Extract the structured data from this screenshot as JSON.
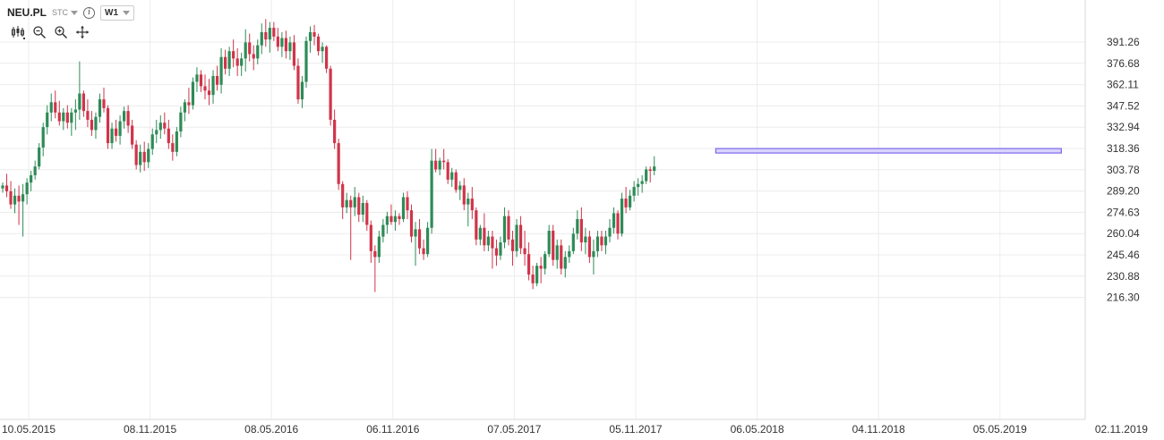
{
  "header": {
    "symbol": "NEU.PL",
    "chart_type": "STC",
    "interval": "W1",
    "icons": [
      "info-icon",
      "candles-icon",
      "zoom-out-icon",
      "zoom-in-icon",
      "move-icon"
    ]
  },
  "colors": {
    "up": "#2e8b57",
    "down": "#d0344a",
    "resistance_fill": "#d9d4fb",
    "resistance_stroke": "#7b68ee",
    "grid": "#ececec"
  },
  "chart_data": {
    "type": "candlestick",
    "y_ticks": [
      "391.26",
      "376.68",
      "362.11",
      "347.52",
      "332.94",
      "318.36",
      "303.78",
      "289.20",
      "274.63",
      "260.04",
      "245.46",
      "230.88",
      "216.30"
    ],
    "x_ticks": [
      "10.05.2015",
      "08.11.2015",
      "08.05.2016",
      "06.11.2016",
      "07.05.2017",
      "05.11.2017",
      "06.05.2018",
      "04.11.2018",
      "05.05.2019",
      "02.11.2019"
    ],
    "ylim": [
      216.3,
      391.26
    ],
    "grid": true,
    "resistance_zone": {
      "from_x": "05.03.2018",
      "to_x": "05.08.2019",
      "low": 317.0,
      "high": 318.3
    },
    "series": [
      {
        "ohlc": [
          [
            291,
            295,
            288,
            293
          ],
          [
            293,
            301,
            285,
            289
          ],
          [
            289,
            296,
            277,
            280
          ],
          [
            280,
            291,
            274,
            286
          ],
          [
            286,
            293,
            266,
            282
          ],
          [
            282,
            294,
            258,
            287
          ],
          [
            287,
            298,
            280,
            295
          ],
          [
            295,
            303,
            289,
            300
          ],
          [
            300,
            310,
            297,
            306
          ],
          [
            306,
            322,
            304,
            319
          ],
          [
            319,
            336,
            313,
            333
          ],
          [
            333,
            348,
            328,
            343
          ],
          [
            343,
            356,
            337,
            350
          ],
          [
            350,
            358,
            339,
            343
          ],
          [
            343,
            351,
            334,
            337
          ],
          [
            337,
            346,
            331,
            343
          ],
          [
            343,
            348,
            332,
            336
          ],
          [
            336,
            346,
            327,
            343
          ],
          [
            343,
            352,
            331,
            345
          ],
          [
            345,
            378,
            338,
            356
          ],
          [
            356,
            358,
            340,
            344
          ],
          [
            344,
            352,
            333,
            338
          ],
          [
            338,
            344,
            327,
            331
          ],
          [
            331,
            343,
            325,
            340
          ],
          [
            340,
            356,
            336,
            352
          ],
          [
            352,
            360,
            343,
            346
          ],
          [
            346,
            348,
            318,
            322
          ],
          [
            322,
            336,
            318,
            332
          ],
          [
            332,
            338,
            323,
            327
          ],
          [
            327,
            341,
            321,
            337
          ],
          [
            337,
            347,
            332,
            344
          ],
          [
            344,
            348,
            329,
            334
          ],
          [
            334,
            338,
            318,
            321
          ],
          [
            321,
            324,
            304,
            307
          ],
          [
            307,
            321,
            302,
            316
          ],
          [
            316,
            323,
            303,
            309
          ],
          [
            309,
            322,
            305,
            318
          ],
          [
            318,
            332,
            314,
            328
          ],
          [
            328,
            338,
            322,
            331
          ],
          [
            331,
            341,
            325,
            336
          ],
          [
            336,
            343,
            328,
            332
          ],
          [
            332,
            338,
            318,
            322
          ],
          [
            322,
            328,
            310,
            316
          ],
          [
            316,
            333,
            313,
            330
          ],
          [
            330,
            347,
            326,
            343
          ],
          [
            343,
            352,
            337,
            350
          ],
          [
            350,
            360,
            342,
            348
          ],
          [
            348,
            367,
            345,
            364
          ],
          [
            364,
            374,
            357,
            369
          ],
          [
            369,
            372,
            357,
            361
          ],
          [
            361,
            369,
            352,
            358
          ],
          [
            358,
            366,
            348,
            355
          ],
          [
            355,
            372,
            349,
            368
          ],
          [
            368,
            375,
            358,
            362
          ],
          [
            362,
            387,
            356,
            381
          ],
          [
            381,
            386,
            369,
            373
          ],
          [
            373,
            388,
            368,
            385
          ],
          [
            385,
            393,
            374,
            380
          ],
          [
            380,
            387,
            368,
            375
          ],
          [
            375,
            384,
            368,
            380
          ],
          [
            380,
            400,
            371,
            391
          ],
          [
            391,
            397,
            378,
            383
          ],
          [
            383,
            389,
            372,
            380
          ],
          [
            380,
            393,
            376,
            389
          ],
          [
            389,
            404,
            383,
            398
          ],
          [
            398,
            407,
            388,
            393
          ],
          [
            393,
            405,
            384,
            401
          ],
          [
            401,
            405,
            392,
            395
          ],
          [
            395,
            401,
            385,
            388
          ],
          [
            388,
            398,
            381,
            394
          ],
          [
            394,
            399,
            380,
            385
          ],
          [
            385,
            395,
            379,
            391
          ],
          [
            391,
            396,
            372,
            375
          ],
          [
            375,
            380,
            349,
            352
          ],
          [
            352,
            368,
            346,
            364
          ],
          [
            364,
            395,
            360,
            392
          ],
          [
            392,
            402,
            384,
            398
          ],
          [
            398,
            403,
            389,
            395
          ],
          [
            395,
            397,
            382,
            385
          ],
          [
            385,
            391,
            377,
            388
          ],
          [
            388,
            389,
            370,
            373
          ],
          [
            373,
            375,
            334,
            338
          ],
          [
            338,
            345,
            318,
            322
          ],
          [
            322,
            325,
            290,
            294
          ],
          [
            294,
            296,
            270,
            278
          ],
          [
            278,
            288,
            274,
            283
          ],
          [
            283,
            286,
            242,
            278
          ],
          [
            278,
            292,
            272,
            285
          ],
          [
            285,
            288,
            268,
            273
          ],
          [
            273,
            286,
            268,
            281
          ],
          [
            281,
            283,
            262,
            266
          ],
          [
            266,
            269,
            240,
            248
          ],
          [
            248,
            252,
            220,
            244
          ],
          [
            244,
            262,
            240,
            258
          ],
          [
            258,
            270,
            254,
            266
          ],
          [
            266,
            275,
            260,
            272
          ],
          [
            272,
            280,
            266,
            268
          ],
          [
            268,
            276,
            262,
            272
          ],
          [
            272,
            274,
            266,
            270
          ],
          [
            270,
            288,
            268,
            285
          ],
          [
            285,
            289,
            270,
            276
          ],
          [
            276,
            280,
            254,
            258
          ],
          [
            258,
            268,
            238,
            263
          ],
          [
            263,
            270,
            246,
            250
          ],
          [
            250,
            256,
            242,
            246
          ],
          [
            246,
            268,
            244,
            264
          ],
          [
            264,
            318,
            260,
            310
          ],
          [
            310,
            318,
            302,
            304
          ],
          [
            304,
            312,
            300,
            310
          ],
          [
            310,
            318,
            304,
            309
          ],
          [
            309,
            311,
            294,
            297
          ],
          [
            297,
            305,
            292,
            302
          ],
          [
            302,
            304,
            288,
            290
          ],
          [
            290,
            296,
            283,
            293
          ],
          [
            293,
            298,
            276,
            280
          ],
          [
            280,
            288,
            265,
            284
          ],
          [
            284,
            292,
            270,
            276
          ],
          [
            276,
            278,
            252,
            256
          ],
          [
            256,
            266,
            252,
            264
          ],
          [
            264,
            274,
            248,
            252
          ],
          [
            252,
            262,
            248,
            258
          ],
          [
            258,
            262,
            236,
            250
          ],
          [
            250,
            256,
            238,
            245
          ],
          [
            245,
            258,
            242,
            254
          ],
          [
            254,
            278,
            250,
            272
          ],
          [
            272,
            276,
            252,
            256
          ],
          [
            256,
            262,
            238,
            248
          ],
          [
            248,
            270,
            244,
            266
          ],
          [
            266,
            272,
            246,
            250
          ],
          [
            250,
            262,
            238,
            246
          ],
          [
            246,
            254,
            228,
            232
          ],
          [
            232,
            238,
            222,
            226
          ],
          [
            226,
            240,
            224,
            238
          ],
          [
            238,
            244,
            226,
            236
          ],
          [
            236,
            248,
            232,
            246
          ],
          [
            246,
            266,
            244,
            262
          ],
          [
            262,
            266,
            238,
            242
          ],
          [
            242,
            256,
            236,
            252
          ],
          [
            252,
            256,
            232,
            236
          ],
          [
            236,
            248,
            230,
            244
          ],
          [
            244,
            252,
            240,
            248
          ],
          [
            248,
            264,
            246,
            260
          ],
          [
            260,
            276,
            256,
            270
          ],
          [
            270,
            278,
            248,
            254
          ],
          [
            254,
            264,
            246,
            258
          ],
          [
            258,
            262,
            240,
            244
          ],
          [
            244,
            256,
            232,
            248
          ],
          [
            248,
            262,
            244,
            258
          ],
          [
            258,
            262,
            248,
            252
          ],
          [
            252,
            262,
            246,
            258
          ],
          [
            258,
            270,
            254,
            264
          ],
          [
            264,
            278,
            260,
            274
          ],
          [
            274,
            276,
            256,
            260
          ],
          [
            260,
            288,
            258,
            284
          ],
          [
            284,
            292,
            274,
            278
          ],
          [
            278,
            290,
            276,
            286
          ],
          [
            286,
            296,
            282,
            292
          ],
          [
            292,
            298,
            286,
            294
          ],
          [
            294,
            300,
            288,
            296
          ],
          [
            296,
            306,
            294,
            304
          ],
          [
            304,
            306,
            295,
            303
          ],
          [
            303,
            313,
            300,
            306
          ]
        ]
      }
    ]
  }
}
